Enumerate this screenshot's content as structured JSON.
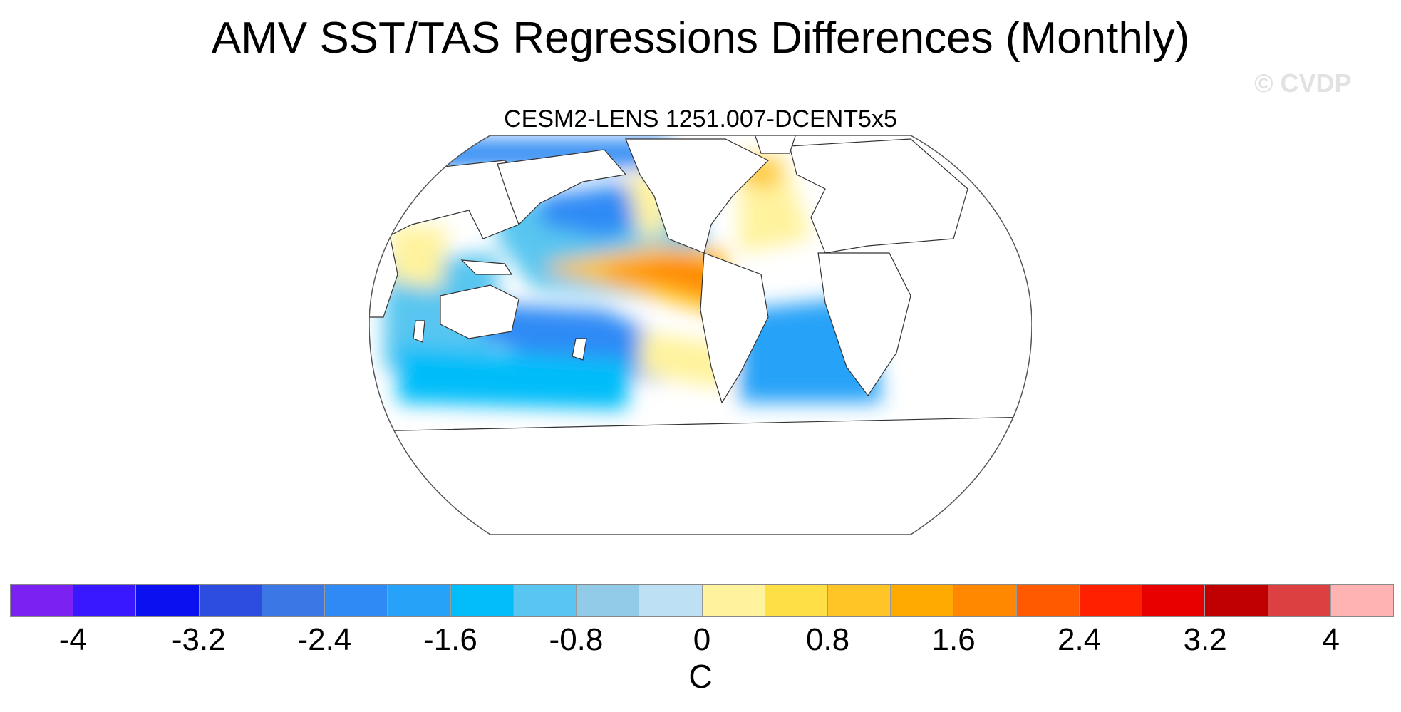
{
  "title": "AMV SST/TAS Regressions Differences (Monthly)",
  "watermark": "© CVDP",
  "subtitle": "CESM2-LENS 1251.007-DCENT5x5",
  "colorbar": {
    "units": "C",
    "colors": [
      "#7b22f2",
      "#3a18ff",
      "#0a10f0",
      "#2c4de0",
      "#3b78e6",
      "#2f8af5",
      "#26a2f8",
      "#02bdf9",
      "#58c6f0",
      "#92cbe8",
      "#bde0f4",
      "#fff39e",
      "#ffdf46",
      "#ffc426",
      "#ffaa00",
      "#ff8800",
      "#ff5a00",
      "#ff2000",
      "#e80000",
      "#c00000",
      "#dc4040",
      "#ffb3b3"
    ],
    "tick_labels": [
      "-4",
      "-3.2",
      "-2.4",
      "-1.6",
      "-0.8",
      "0",
      "0.8",
      "1.6",
      "2.4",
      "3.2",
      "4"
    ],
    "tick_values": [
      -4,
      -3.2,
      -2.4,
      -1.6,
      -0.8,
      0,
      0.8,
      1.6,
      2.4,
      3.2,
      4
    ]
  },
  "map": {
    "projection": "Robinson",
    "land_color": "#ffffff",
    "anomalies": [
      {
        "region": "eastern-tropical-pacific",
        "category": "warm",
        "value": 2.0,
        "color": "#ff8800"
      },
      {
        "region": "central-tropical-pacific",
        "category": "warm",
        "value": 1.3,
        "color": "#ffc426"
      },
      {
        "region": "south-pacific-off-chile",
        "category": "warm",
        "value": 0.6,
        "color": "#fff39e"
      },
      {
        "region": "north-atlantic",
        "category": "warm",
        "value": 0.6,
        "color": "#fff39e"
      },
      {
        "region": "labrador-sea",
        "category": "warm",
        "value": 1.2,
        "color": "#ffc426"
      },
      {
        "region": "northeast-pacific-coast",
        "category": "warm",
        "value": 0.5,
        "color": "#fff39e"
      },
      {
        "region": "western-indian-ocean",
        "category": "warm",
        "value": 0.4,
        "color": "#fff39e"
      },
      {
        "region": "north-pacific",
        "category": "cool",
        "value": -1.4,
        "color": "#26a2f8"
      },
      {
        "region": "kuroshio-extension",
        "category": "cool",
        "value": -2.2,
        "color": "#2f8af5"
      },
      {
        "region": "southwest-pacific",
        "category": "cool",
        "value": -2.0,
        "color": "#2f8af5"
      },
      {
        "region": "southern-ocean",
        "category": "cool",
        "value": -1.3,
        "color": "#02bdf9"
      },
      {
        "region": "south-atlantic",
        "category": "cool",
        "value": -1.5,
        "color": "#26a2f8"
      },
      {
        "region": "indian-ocean",
        "category": "cool",
        "value": -1.0,
        "color": "#58c6f0"
      },
      {
        "region": "arctic",
        "category": "cool",
        "value": -1.8,
        "color": "#2f8af5"
      }
    ]
  }
}
